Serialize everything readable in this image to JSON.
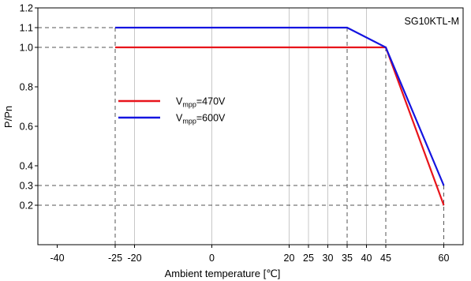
{
  "chart_data": {
    "type": "line",
    "annotation": "SG10KTL-M",
    "xlabel": "Ambient temperature [℃]",
    "ylabel": "P/Pn",
    "xlim": [
      -45,
      65
    ],
    "ylim": [
      0,
      1.2
    ],
    "x_ticks": [
      -40,
      -25,
      -20,
      0,
      20,
      25,
      30,
      35,
      40,
      45,
      60
    ],
    "y_ticks": [
      0.2,
      0.3,
      0.4,
      0.6,
      0.8,
      1.0,
      1.1,
      1.2
    ],
    "y_tick_labels": [
      "0.2",
      "0.3",
      "0.4",
      "0.6",
      "0.8",
      "1.0",
      "1.1",
      "1.2"
    ],
    "x_gridlines": [
      -20,
      0,
      20,
      25,
      30,
      40
    ],
    "dashed_guides": {
      "vertical": [
        -25,
        25,
        30,
        35,
        45,
        60
      ],
      "horizontal": [
        1.1,
        1.0,
        0.3,
        0.2
      ]
    },
    "legend": {
      "placement": "center-left"
    },
    "series": [
      {
        "name": "V_mpp=470V",
        "label_main": "V",
        "label_sub": "mpp",
        "label_rest": "=470V",
        "color": "#e8141b",
        "points": [
          [
            -25,
            1.0
          ],
          [
            45,
            1.0
          ],
          [
            60,
            0.2
          ]
        ]
      },
      {
        "name": "V_mpp=600V",
        "label_main": "V",
        "label_sub": "mpp",
        "label_rest": "=600V",
        "color": "#1414e0",
        "points": [
          [
            -25,
            1.1
          ],
          [
            35,
            1.1
          ],
          [
            45,
            1.0
          ],
          [
            60,
            0.3
          ]
        ]
      }
    ]
  }
}
